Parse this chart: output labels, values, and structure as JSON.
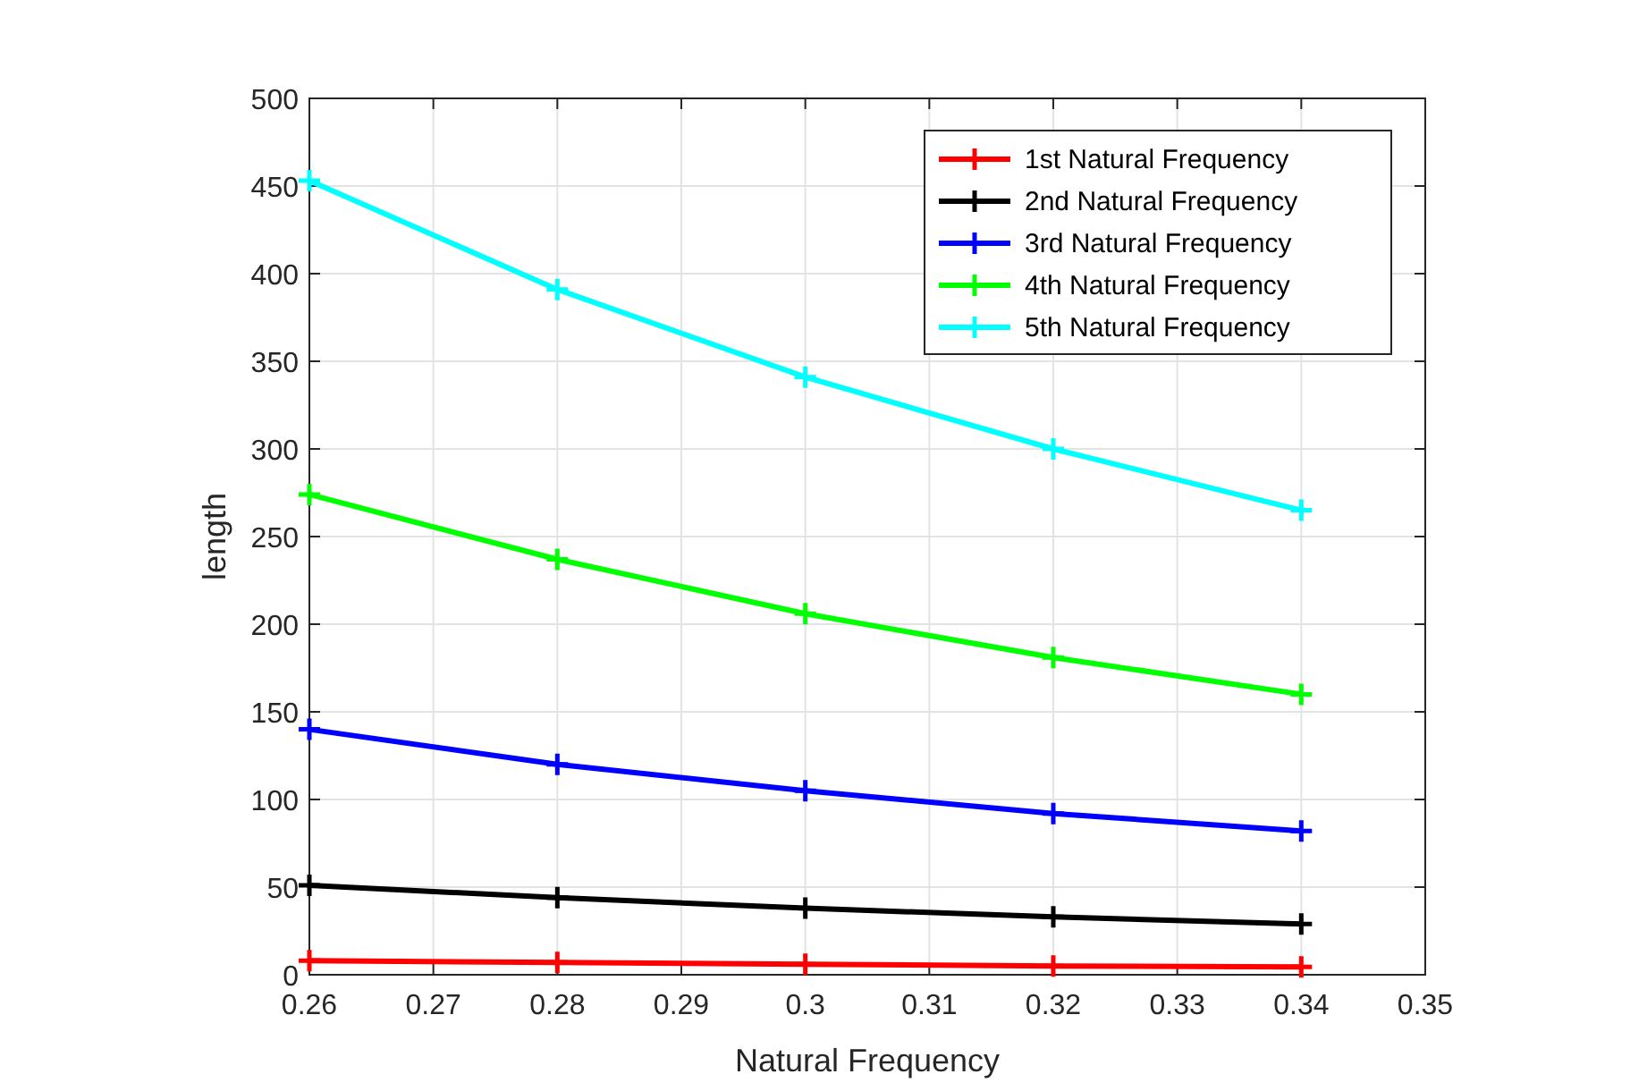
{
  "chart_data": {
    "type": "line",
    "xlabel": "Natural Frequency",
    "ylabel": "length",
    "x": [
      0.26,
      0.28,
      0.3,
      0.32,
      0.34
    ],
    "series": [
      {
        "name": "1st Natural Frequency",
        "color": "#ff0000",
        "values": [
          8,
          7,
          6,
          5,
          4.5
        ]
      },
      {
        "name": "2nd Natural Frequency",
        "color": "#000000",
        "values": [
          51,
          44,
          38,
          33,
          29
        ]
      },
      {
        "name": "3rd Natural Frequency",
        "color": "#0000ff",
        "values": [
          140,
          120,
          105,
          92,
          82
        ]
      },
      {
        "name": "4th Natural Frequency",
        "color": "#00ff00",
        "values": [
          274,
          237,
          206,
          181,
          160
        ]
      },
      {
        "name": "5th Natural Frequency",
        "color": "#00ffff",
        "values": [
          453,
          391,
          341,
          300,
          265
        ]
      }
    ],
    "xlim": [
      0.26,
      0.35
    ],
    "xticks": [
      0.26,
      0.27,
      0.28,
      0.29,
      0.3,
      0.31,
      0.32,
      0.33,
      0.34,
      0.35
    ],
    "ylim": [
      0,
      500
    ],
    "yticks": [
      0,
      50,
      100,
      150,
      200,
      250,
      300,
      350,
      400,
      450,
      500
    ],
    "grid": true,
    "legend": "top right",
    "marker": "cross",
    "line_style": "solid"
  }
}
